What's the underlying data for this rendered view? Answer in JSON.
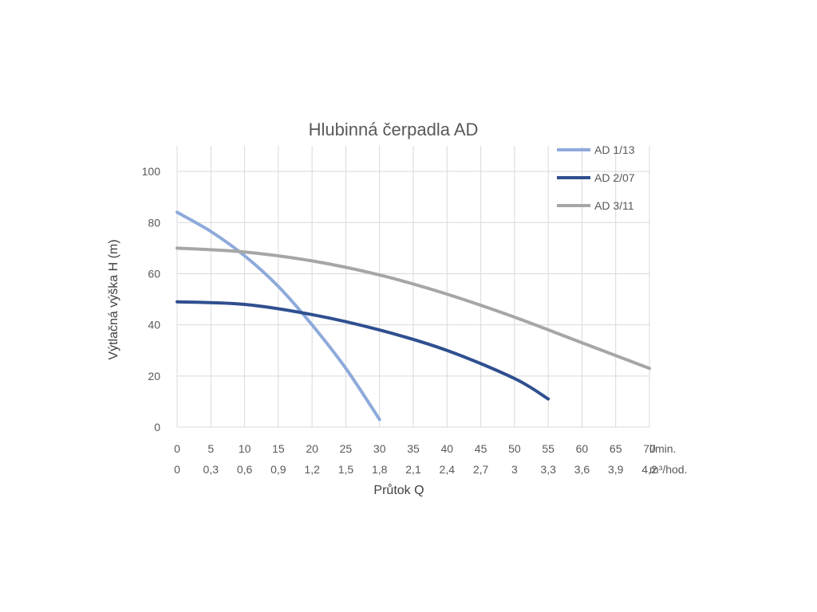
{
  "chart_data": {
    "type": "line",
    "title": "Hlubinná čerpadla AD",
    "xlabel": "Průtok Q",
    "ylabel": "Výtlačná výška H (m)",
    "xlim": [
      0,
      70
    ],
    "ylim": [
      0,
      110
    ],
    "y_ticks": [
      0,
      20,
      40,
      60,
      80,
      100
    ],
    "x_ticks": [
      0,
      5,
      10,
      15,
      20,
      25,
      30,
      35,
      40,
      45,
      50,
      55,
      60,
      65,
      70
    ],
    "x_tick_labels_lmin": [
      "0",
      "5",
      "10",
      "15",
      "20",
      "25",
      "30",
      "35",
      "40",
      "45",
      "50",
      "55",
      "60",
      "65",
      "70"
    ],
    "x_tick_labels_m3h": [
      "0",
      "0,3",
      "0,6",
      "0,9",
      "1,2",
      "1,5",
      "1,8",
      "2,1",
      "2,4",
      "2,7",
      "3",
      "3,3",
      "3,6",
      "3,9",
      "4,2"
    ],
    "x_unit_primary": "l/min.",
    "x_unit_secondary": "m³/hod.",
    "grid": true,
    "legend_position": "top-right",
    "series": [
      {
        "name": "AD 1/13",
        "color": "#8eaadb",
        "x": [
          0,
          5,
          10,
          15,
          20,
          25,
          30
        ],
        "y": [
          84,
          76.5,
          67,
          55,
          40,
          23,
          3
        ]
      },
      {
        "name": "AD 2/07",
        "color": "#2f4f8f",
        "x": [
          0,
          10,
          20,
          30,
          40,
          50,
          55
        ],
        "y": [
          49,
          48,
          44,
          38,
          30,
          19,
          11
        ]
      },
      {
        "name": "AD 3/11",
        "color": "#a6a6a6",
        "x": [
          0,
          10,
          20,
          30,
          40,
          50,
          60,
          70
        ],
        "y": [
          70,
          68.5,
          65,
          59.5,
          52,
          43,
          33,
          23
        ]
      }
    ]
  }
}
